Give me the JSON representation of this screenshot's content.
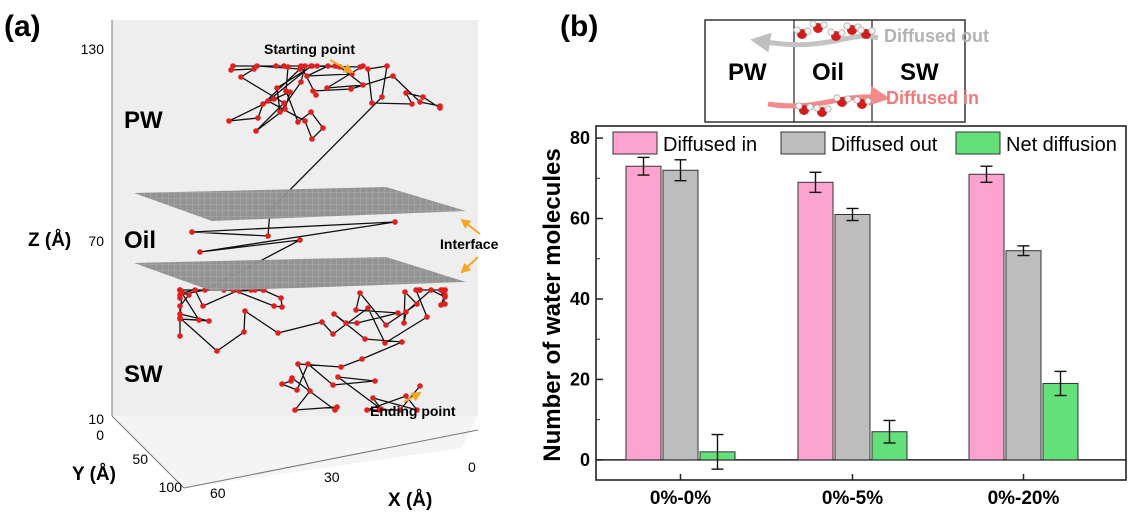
{
  "panel_a": {
    "label": "(a)",
    "regions": [
      "PW",
      "Oil",
      "SW"
    ],
    "annotations": {
      "start": "Starting point",
      "end": "Ending point",
      "interface": "Interface"
    },
    "z_axis": {
      "title": "Z (Å)",
      "ticks": [
        "130",
        "70",
        "10"
      ]
    },
    "y_axis": {
      "title": "Y (Å)",
      "ticks": [
        "0",
        "50",
        "100"
      ]
    },
    "x_axis": {
      "title": "X (Å)",
      "ticks": [
        "60",
        "30",
        "0"
      ]
    }
  },
  "panel_b": {
    "label": "(b)",
    "inset": {
      "regions": [
        "PW",
        "Oil",
        "SW"
      ],
      "out_label": "Diffused out",
      "in_label": "Diffused in"
    }
  },
  "chart_data": {
    "type": "bar",
    "ylabel": "Number of water molecules",
    "categories": [
      "0%-0%",
      "0%-5%",
      "0%-20%"
    ],
    "ylim": [
      -5,
      83
    ],
    "yticks": [
      0,
      20,
      40,
      60,
      80
    ],
    "legend_position": "top",
    "series": [
      {
        "name": "Diffused in",
        "color": "#fca3cf",
        "values": [
          73,
          69,
          71
        ],
        "errors": [
          2.2,
          2.5,
          2.0
        ]
      },
      {
        "name": "Diffused out",
        "color": "#bdbdbd",
        "values": [
          72,
          61,
          52
        ],
        "errors": [
          2.6,
          1.5,
          1.2
        ]
      },
      {
        "name": "Net diffusion",
        "color": "#63e07a",
        "values": [
          2,
          7,
          19
        ],
        "errors": [
          4.3,
          2.8,
          3.0
        ]
      }
    ]
  }
}
